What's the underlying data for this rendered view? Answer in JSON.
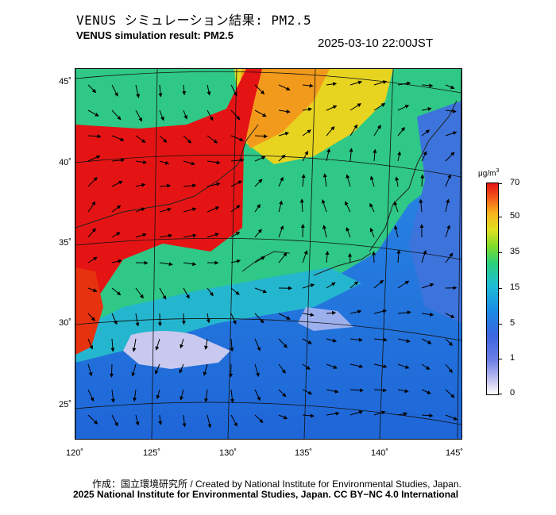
{
  "header": {
    "title_jp": "VENUS シミュレーション結果: PM2.5",
    "title_en": "VENUS simulation result: PM2.5",
    "timestamp": "2025-03-10 22:00JST"
  },
  "map": {
    "latitude_labels": [
      "45˚",
      "40˚",
      "35˚",
      "30˚",
      "25˚"
    ],
    "longitude_labels": [
      "120˚",
      "125˚",
      "130˚",
      "135˚",
      "140˚",
      "145˚"
    ]
  },
  "colorbar": {
    "unit_text": "μg/m",
    "unit_superscript": "3",
    "ticks": [
      "70",
      "50",
      "35",
      "15",
      "5",
      "1",
      "0"
    ],
    "colors": {
      "low": "#ffffff",
      "blue": "#3b66e0",
      "cyan": "#1fbfd4",
      "green": "#2ad07a",
      "yellow": "#e0e020",
      "orange": "#f7b21c",
      "high": "#e51414"
    }
  },
  "footer": {
    "credit_line1": "作成：国立環境研究所 / Created by National Institute for Environmental Studies, Japan.",
    "credit_line2": "2025 National Institute for Environmental Studies, Japan. CC BY−NC 4.0 International"
  }
}
